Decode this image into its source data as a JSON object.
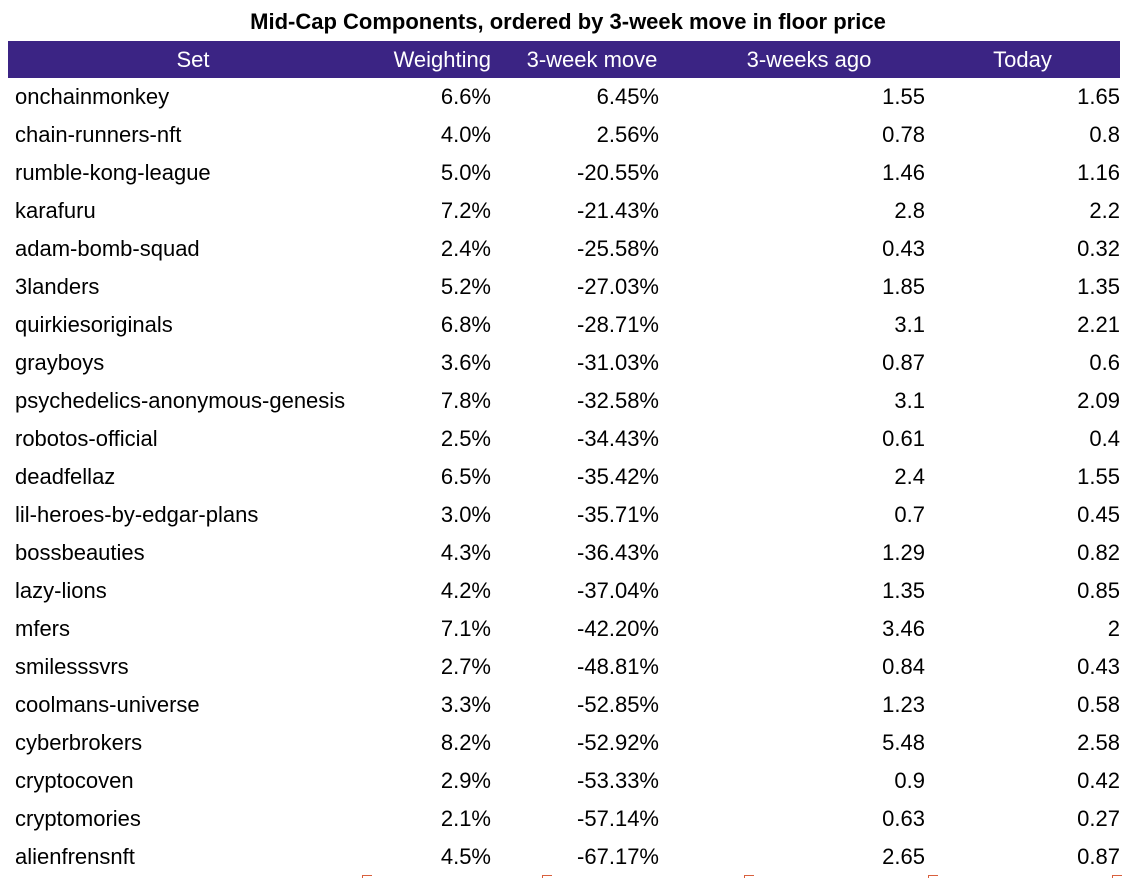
{
  "chart_data": {
    "type": "table",
    "title": "Mid-Cap Components, ordered by 3-week move in floor price",
    "columns": [
      "Set",
      "Weighting",
      "3-week move",
      "3-weeks ago",
      "Today"
    ],
    "rows": [
      [
        "onchainmonkey",
        "6.6%",
        "6.45%",
        "1.55",
        "1.65"
      ],
      [
        "chain-runners-nft",
        "4.0%",
        "2.56%",
        "0.78",
        "0.8"
      ],
      [
        "rumble-kong-league",
        "5.0%",
        "-20.55%",
        "1.46",
        "1.16"
      ],
      [
        "karafuru",
        "7.2%",
        "-21.43%",
        "2.8",
        "2.2"
      ],
      [
        "adam-bomb-squad",
        "2.4%",
        "-25.58%",
        "0.43",
        "0.32"
      ],
      [
        "3landers",
        "5.2%",
        "-27.03%",
        "1.85",
        "1.35"
      ],
      [
        "quirkiesoriginals",
        "6.8%",
        "-28.71%",
        "3.1",
        "2.21"
      ],
      [
        "grayboys",
        "3.6%",
        "-31.03%",
        "0.87",
        "0.6"
      ],
      [
        "psychedelics-anonymous-genesis",
        "7.8%",
        "-32.58%",
        "3.1",
        "2.09"
      ],
      [
        "robotos-official",
        "2.5%",
        "-34.43%",
        "0.61",
        "0.4"
      ],
      [
        "deadfellaz",
        "6.5%",
        "-35.42%",
        "2.4",
        "1.55"
      ],
      [
        "lil-heroes-by-edgar-plans",
        "3.0%",
        "-35.71%",
        "0.7",
        "0.45"
      ],
      [
        "bossbeauties",
        "4.3%",
        "-36.43%",
        "1.29",
        "0.82"
      ],
      [
        "lazy-lions",
        "4.2%",
        "-37.04%",
        "1.35",
        "0.85"
      ],
      [
        "mfers",
        "7.1%",
        "-42.20%",
        "3.46",
        "2"
      ],
      [
        "smilesssvrs",
        "2.7%",
        "-48.81%",
        "0.84",
        "0.43"
      ],
      [
        "coolmans-universe",
        "3.3%",
        "-52.85%",
        "1.23",
        "0.58"
      ],
      [
        "cyberbrokers",
        "8.2%",
        "-52.92%",
        "5.48",
        "2.58"
      ],
      [
        "cryptocoven",
        "2.9%",
        "-53.33%",
        "0.9",
        "0.42"
      ],
      [
        "cryptomories",
        "2.1%",
        "-57.14%",
        "0.63",
        "0.27"
      ],
      [
        "alienfrensnft",
        "4.5%",
        "-67.17%",
        "2.65",
        "0.87"
      ]
    ]
  },
  "colors": {
    "header_background": "#3b2484",
    "header_text": "#ffffff",
    "body_text": "#000000",
    "background": "#ffffff"
  }
}
